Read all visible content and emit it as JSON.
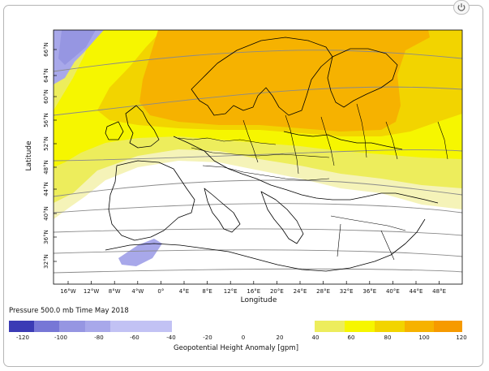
{
  "app": {
    "power_icon": "power-icon"
  },
  "map": {
    "xlabel": "Longitude",
    "ylabel": "Latitude",
    "lat_ticks": [
      "66°N",
      "64°N",
      "60°N",
      "56°N",
      "52°N",
      "48°N",
      "44°N",
      "40°N",
      "36°N",
      "32°N"
    ],
    "lon_ticks": [
      "16°W",
      "12°W",
      "8°W",
      "4°W",
      "0°",
      "4°E",
      "8°E",
      "12°E",
      "16°E",
      "20°E",
      "24°E",
      "28°E",
      "32°E",
      "36°E",
      "40°E",
      "44°E",
      "48°E"
    ]
  },
  "colorbar": {
    "title": "Pressure 500.0 mb Time May 2018",
    "unit_label": "Geopotential Height Anomaly [gpm]",
    "tick_labels": [
      "-120",
      "-100",
      "-80",
      "-60",
      "-40",
      "-20",
      "0",
      "20",
      "40",
      "60",
      "80",
      "100",
      "120"
    ],
    "colors": {
      "neg": [
        "#3b3bb5",
        "#7777d6",
        "#9696e2",
        "#a8a8ea",
        "#c2c2f4"
      ],
      "pos": [
        "#eded5c",
        "#f6f600",
        "#f2d400",
        "#f6b200",
        "#f69a00"
      ]
    }
  }
}
